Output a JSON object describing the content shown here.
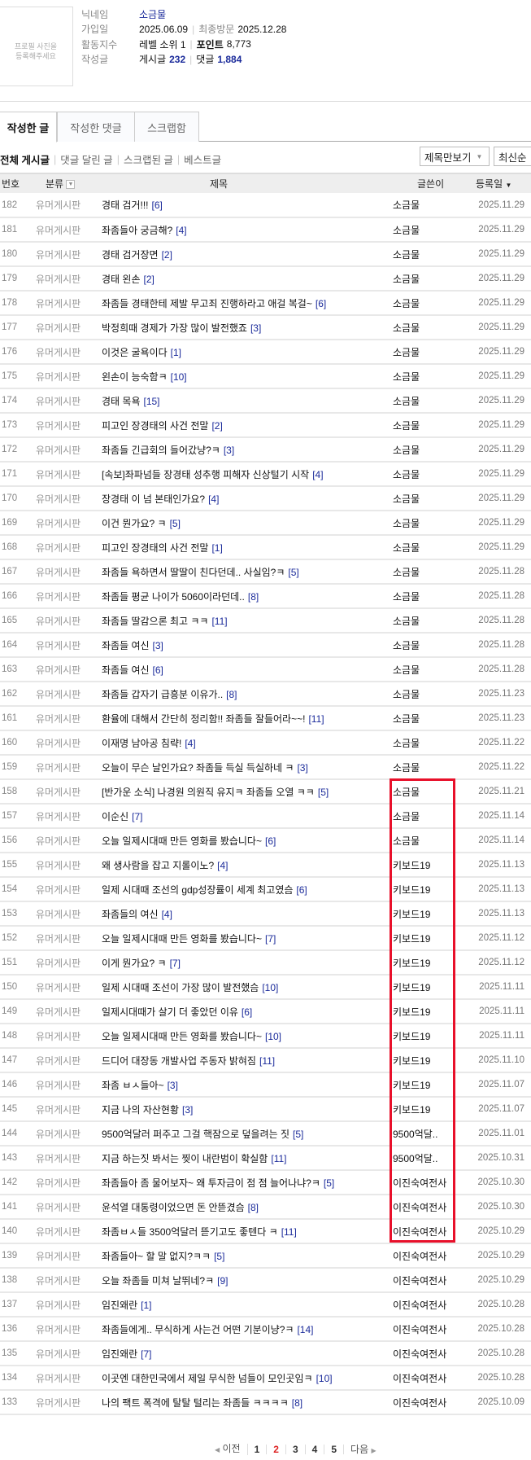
{
  "profile": {
    "photo_placeholder": "프로필 사진을\n등록해주세요",
    "nickname_label": "닉네임",
    "nickname": "소금물",
    "joined_label": "가입일",
    "joined": "2025.06.09",
    "last_visit_label": "최종방문",
    "last_visit": "2025.12.28",
    "activity_label": "활동지수",
    "level": "레벨 소위 1",
    "points_label": "포인트",
    "points": "8,773",
    "posts_label": "작성글",
    "post_count_label": "게시글",
    "post_count": "232",
    "comment_count_label": "댓글",
    "comment_count": "1,884"
  },
  "tabs": [
    "작성한 글",
    "작성한 댓글",
    "스크랩함"
  ],
  "filters": [
    "전체 게시글",
    "댓글 달린 글",
    "스크랩된 글",
    "베스트글"
  ],
  "view_select": "제목만보기",
  "sort_select": "최신순",
  "columns": {
    "num": "번호",
    "category": "분류",
    "title": "제목",
    "writer": "글쓴이",
    "date": "등록일"
  },
  "rows": [
    [
      "182",
      "유머게시판",
      "경태 검거!!!",
      "[6]",
      "소금물",
      "2025.11.29"
    ],
    [
      "181",
      "유머게시판",
      "좌좀들아 궁금해?",
      "[4]",
      "소금물",
      "2025.11.29"
    ],
    [
      "180",
      "유머게시판",
      "경태 검거장면",
      "[2]",
      "소금물",
      "2025.11.29"
    ],
    [
      "179",
      "유머게시판",
      "경태 왼손",
      "[2]",
      "소금물",
      "2025.11.29"
    ],
    [
      "178",
      "유머게시판",
      "좌좀들 경태한테 제발 무고죄 진행하라고 애걸 복걸~",
      "[6]",
      "소금물",
      "2025.11.29"
    ],
    [
      "177",
      "유머게시판",
      "박정희때 경제가 가장 많이 발전했죠",
      "[3]",
      "소금물",
      "2025.11.29"
    ],
    [
      "176",
      "유머게시판",
      "이것은 굴욕이다",
      "[1]",
      "소금물",
      "2025.11.29"
    ],
    [
      "175",
      "유머게시판",
      "왼손이 능숙함ㅋ",
      "[10]",
      "소금물",
      "2025.11.29"
    ],
    [
      "174",
      "유머게시판",
      "경태 목욕",
      "[15]",
      "소금물",
      "2025.11.29"
    ],
    [
      "173",
      "유머게시판",
      "피고인 장경태의 사건 전말",
      "[2]",
      "소금물",
      "2025.11.29"
    ],
    [
      "172",
      "유머게시판",
      "좌좀들 긴급회의 들어갔냥?ㅋ",
      "[3]",
      "소금물",
      "2025.11.29"
    ],
    [
      "171",
      "유머게시판",
      "[속보]좌파넘들 장경태 성추행 피해자 신상털기 시작",
      "[4]",
      "소금물",
      "2025.11.29"
    ],
    [
      "170",
      "유머게시판",
      "장경태 이 넘 본태인가요?",
      "[4]",
      "소금물",
      "2025.11.29"
    ],
    [
      "169",
      "유머게시판",
      "이건 뭔가요? ㅋ",
      "[5]",
      "소금물",
      "2025.11.29"
    ],
    [
      "168",
      "유머게시판",
      "피고인 장경태의 사건 전말",
      "[1]",
      "소금물",
      "2025.11.29"
    ],
    [
      "167",
      "유머게시판",
      "좌좀들 욕하면서 딸딸이 친다던데.. 사실임?ㅋ",
      "[5]",
      "소금물",
      "2025.11.28"
    ],
    [
      "166",
      "유머게시판",
      "좌좀들 평균 나이가 5060이라던데..",
      "[8]",
      "소금물",
      "2025.11.28"
    ],
    [
      "165",
      "유머게시판",
      "좌좀들 딸감으론 최고 ㅋㅋ",
      "[11]",
      "소금물",
      "2025.11.28"
    ],
    [
      "164",
      "유머게시판",
      "좌좀들 여신",
      "[3]",
      "소금물",
      "2025.11.28"
    ],
    [
      "163",
      "유머게시판",
      "좌좀들 여신",
      "[6]",
      "소금물",
      "2025.11.28"
    ],
    [
      "162",
      "유머게시판",
      "좌좀들 갑자기 급흥분 이유가..",
      "[8]",
      "소금물",
      "2025.11.23"
    ],
    [
      "161",
      "유머게시판",
      "환율에 대해서 간단히 정리함!! 좌좀들 잘들어라~~!",
      "[11]",
      "소금물",
      "2025.11.23"
    ],
    [
      "160",
      "유머게시판",
      "이재명 남아공 침략!",
      "[4]",
      "소금물",
      "2025.11.22"
    ],
    [
      "159",
      "유머게시판",
      "오늘이 무슨 날인가요? 좌좀들 득실 득실하네 ㅋ",
      "[3]",
      "소금물",
      "2025.11.22"
    ],
    [
      "158",
      "유머게시판",
      "[반가운 소식] 나경원 의원직 유지ㅋ 좌좀들 오열 ㅋㅋ",
      "[5]",
      "소금물",
      "2025.11.21"
    ],
    [
      "157",
      "유머게시판",
      "이순신",
      "[7]",
      "소금물",
      "2025.11.14"
    ],
    [
      "156",
      "유머게시판",
      "오늘 일제시대때 만든 영화를 봤습니다~",
      "[6]",
      "소금물",
      "2025.11.14"
    ],
    [
      "155",
      "유머게시판",
      "왜 생사람을 잡고 지롤이노?",
      "[4]",
      "키보드19",
      "2025.11.13"
    ],
    [
      "154",
      "유머게시판",
      "일제 시대때 조선의 gdp성장률이 세계 최고였슴",
      "[6]",
      "키보드19",
      "2025.11.13"
    ],
    [
      "153",
      "유머게시판",
      "좌좀들의 여신",
      "[4]",
      "키보드19",
      "2025.11.13"
    ],
    [
      "152",
      "유머게시판",
      "오늘 일제시대때 만든 영화를 봤습니다~",
      "[7]",
      "키보드19",
      "2025.11.12"
    ],
    [
      "151",
      "유머게시판",
      "이게 뭔가요? ㅋ",
      "[7]",
      "키보드19",
      "2025.11.12"
    ],
    [
      "150",
      "유머게시판",
      "일제 시대때 조선이 가장 많이 발전했슴",
      "[10]",
      "키보드19",
      "2025.11.11"
    ],
    [
      "149",
      "유머게시판",
      "일제시대때가 살기 더 좋았던 이유",
      "[6]",
      "키보드19",
      "2025.11.11"
    ],
    [
      "148",
      "유머게시판",
      "오늘 일제시대때 만든 영화를 봤습니다~",
      "[10]",
      "키보드19",
      "2025.11.11"
    ],
    [
      "147",
      "유머게시판",
      "드디어 대장동 개발사업 주동자 밝혀짐",
      "[11]",
      "키보드19",
      "2025.11.10"
    ],
    [
      "146",
      "유머게시판",
      "좌좀 ㅂㅅ들아~",
      "[3]",
      "키보드19",
      "2025.11.07"
    ],
    [
      "145",
      "유머게시판",
      "지금 나의 자산현황",
      "[3]",
      "키보드19",
      "2025.11.07"
    ],
    [
      "144",
      "유머게시판",
      "9500억달러 퍼주고 그걸 핵잠으로 덮을려는 짓",
      "[5]",
      "9500억달..",
      "2025.11.01"
    ],
    [
      "143",
      "유머게시판",
      "지금 하는짓 봐서는 찢이 내란범이 확실함",
      "[11]",
      "9500억달..",
      "2025.10.31"
    ],
    [
      "142",
      "유머게시판",
      "좌좀들아 좀 물어보자~ 왜 투자금이 점 점 늘어나냐?ㅋ",
      "[5]",
      "이진숙여전사",
      "2025.10.30"
    ],
    [
      "141",
      "유머게시판",
      "윤석열 대통령이었으면 돈 안뜯겼슴",
      "[8]",
      "이진숙여전사",
      "2025.10.30"
    ],
    [
      "140",
      "유머게시판",
      "좌좀ㅂㅅ들 3500억달러 뜯기고도 좋텐다 ㅋ",
      "[11]",
      "이진숙여전사",
      "2025.10.29"
    ],
    [
      "139",
      "유머게시판",
      "좌좀들아~ 할 말 없지?ㅋㅋ",
      "[5]",
      "이진숙여전사",
      "2025.10.29"
    ],
    [
      "138",
      "유머게시판",
      "오늘 좌좀들 미쳐 날뛰네?ㅋ",
      "[9]",
      "이진숙여전사",
      "2025.10.29"
    ],
    [
      "137",
      "유머게시판",
      "임진왜란",
      "[1]",
      "이진숙여전사",
      "2025.10.28"
    ],
    [
      "136",
      "유머게시판",
      "좌좀들에게.. 무식하게 사는건 어떤 기분이냥?ㅋ",
      "[14]",
      "이진숙여전사",
      "2025.10.28"
    ],
    [
      "135",
      "유머게시판",
      "임진왜란",
      "[7]",
      "이진숙여전사",
      "2025.10.28"
    ],
    [
      "134",
      "유머게시판",
      "이곳엔 대한민국에서 제일 무식한 넘들이 모인곳임ㅋ",
      "[10]",
      "이진숙여전사",
      "2025.10.28"
    ],
    [
      "133",
      "유머게시판",
      "나의 팩트 폭격에 탈탈 털리는 좌좀들 ㅋㅋㅋㅋ",
      "[8]",
      "이진숙여전사",
      "2025.10.09"
    ]
  ],
  "pagination": {
    "prev": "이전",
    "pages": [
      "1",
      "2",
      "3",
      "4",
      "5"
    ],
    "current": "2",
    "next": "다음"
  },
  "highlight_color": "#e8102a"
}
